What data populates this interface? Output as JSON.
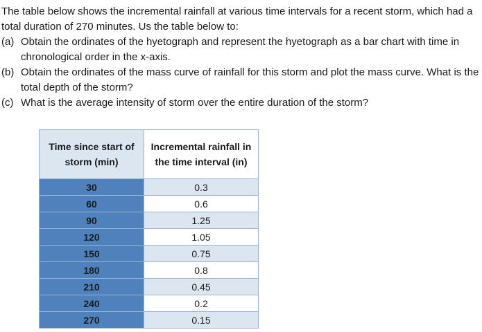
{
  "problem": {
    "intro": "The table below shows the incremental rainfall at various time intervals for a recent storm, which had a total duration of 270 minutes.  Us the table below to:",
    "parts": [
      {
        "label": "(a)",
        "text": "Obtain the ordinates of the hyetograph and represent the hyetograph as a bar chart with time in chronological order in the x-axis."
      },
      {
        "label": "(b)",
        "text": "Obtain the ordinates of the mass curve of rainfall for this storm and plot the mass curve. What is the total depth of the storm?"
      },
      {
        "label": "(c)",
        "text": "What is the average intensity of storm over the entire duration of the storm?"
      }
    ]
  },
  "table": {
    "headers": {
      "time": "Time since start of storm (min)",
      "incremental": "Incremental rainfall in the time interval (in)"
    },
    "rows": [
      {
        "time": "30",
        "rain": "0.3"
      },
      {
        "time": "60",
        "rain": "0.6"
      },
      {
        "time": "90",
        "rain": "1.25"
      },
      {
        "time": "120",
        "rain": "1.05"
      },
      {
        "time": "150",
        "rain": "0.75"
      },
      {
        "time": "180",
        "rain": "0.8"
      },
      {
        "time": "210",
        "rain": "0.45"
      },
      {
        "time": "240",
        "rain": "0.2"
      },
      {
        "time": "270",
        "rain": "0.15"
      }
    ]
  }
}
